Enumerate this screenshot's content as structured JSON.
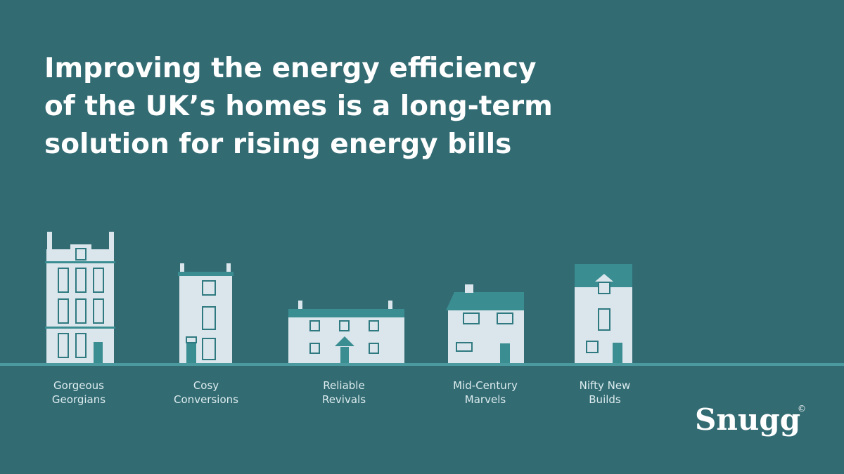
{
  "header": {
    "title_lines": [
      "Improving the energy efficiency",
      "of the UK’s homes is a long-term",
      "solution for rising energy bills"
    ]
  },
  "houses": [
    {
      "label_lines": [
        "Gorgeous",
        "Georgians"
      ]
    },
    {
      "label_lines": [
        "Cosy",
        "Conversions"
      ]
    },
    {
      "label_lines": [
        "Reliable",
        "Revivals"
      ]
    },
    {
      "label_lines": [
        "Mid-Century",
        "Marvels"
      ]
    },
    {
      "label_lines": [
        "Nifty New",
        "Builds"
      ]
    }
  ],
  "logo": {
    "name": "Snugg",
    "mark": "©"
  }
}
